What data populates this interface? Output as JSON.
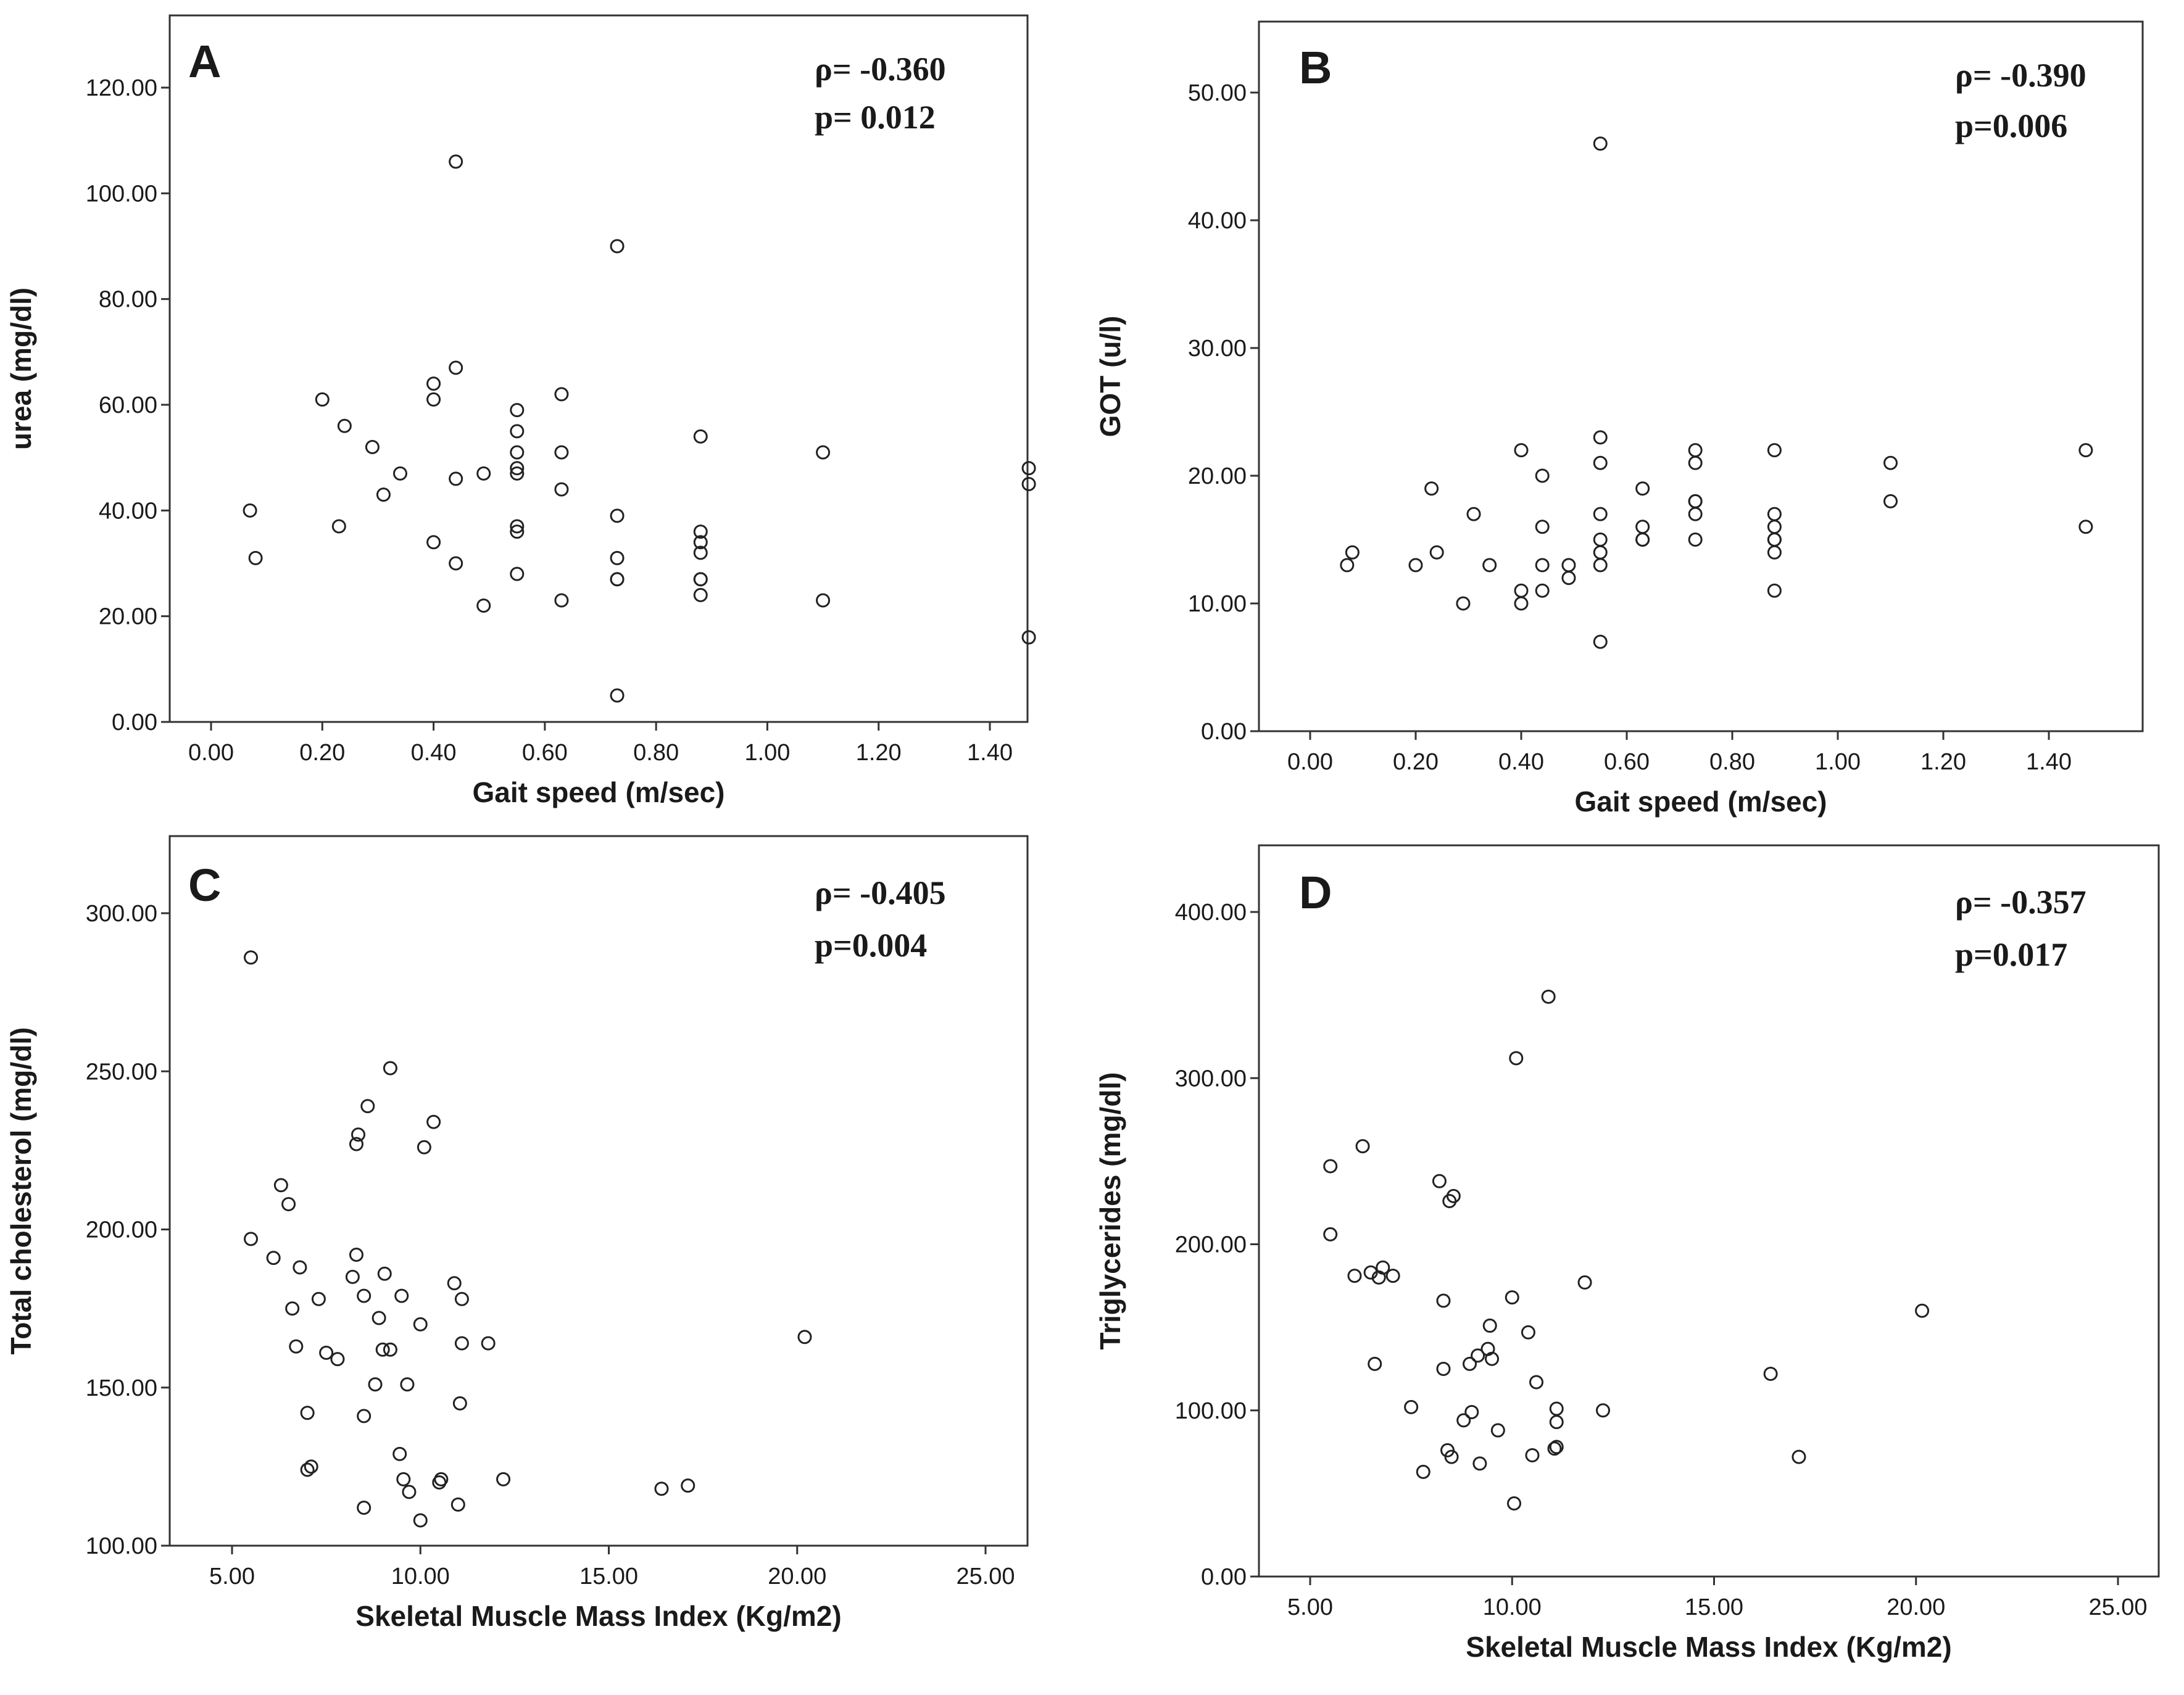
{
  "chart_data": [
    {
      "type": "scatter",
      "panel_label": "A",
      "rho_text": "ρ= -0.360",
      "p_text": "p= 0.012",
      "xlabel": "Gait speed (m/sec)",
      "ylabel": "urea (mg/dl)",
      "xlim": [
        -0.1,
        1.57
      ],
      "ylim": [
        0,
        120
      ],
      "x_ticks": [
        0,
        0.2,
        0.4,
        0.6,
        0.8,
        1.0,
        1.2,
        1.4
      ],
      "y_ticks": [
        0,
        20,
        40,
        60,
        80,
        100,
        120
      ],
      "x_tick_labels": [
        "0.00",
        "0.20",
        "0.40",
        "0.60",
        "0.80",
        "1.00",
        "1.20",
        "1.40"
      ],
      "y_tick_labels": [
        "0.00",
        "20.00",
        "40.00",
        "60.00",
        "80.00",
        "100.00",
        "120.00"
      ],
      "points": [
        [
          0.07,
          40
        ],
        [
          0.08,
          31
        ],
        [
          0.2,
          61
        ],
        [
          0.23,
          37
        ],
        [
          0.24,
          56
        ],
        [
          0.29,
          52
        ],
        [
          0.31,
          43
        ],
        [
          0.34,
          47
        ],
        [
          0.4,
          64
        ],
        [
          0.4,
          61
        ],
        [
          0.4,
          34
        ],
        [
          0.44,
          106
        ],
        [
          0.44,
          67
        ],
        [
          0.44,
          46
        ],
        [
          0.44,
          30
        ],
        [
          0.49,
          47
        ],
        [
          0.49,
          22
        ],
        [
          0.55,
          59
        ],
        [
          0.55,
          55
        ],
        [
          0.55,
          51
        ],
        [
          0.55,
          48
        ],
        [
          0.55,
          47
        ],
        [
          0.55,
          37
        ],
        [
          0.55,
          36
        ],
        [
          0.55,
          28
        ],
        [
          0.63,
          62
        ],
        [
          0.63,
          51
        ],
        [
          0.63,
          44
        ],
        [
          0.63,
          23
        ],
        [
          0.73,
          90
        ],
        [
          0.73,
          39
        ],
        [
          0.73,
          31
        ],
        [
          0.73,
          27
        ],
        [
          0.73,
          27
        ],
        [
          0.73,
          5
        ],
        [
          0.88,
          54
        ],
        [
          0.88,
          36
        ],
        [
          0.88,
          34
        ],
        [
          0.88,
          32
        ],
        [
          0.88,
          27
        ],
        [
          0.88,
          27
        ],
        [
          0.88,
          24
        ],
        [
          1.1,
          51
        ],
        [
          1.1,
          23
        ],
        [
          1.47,
          48
        ],
        [
          1.47,
          45
        ],
        [
          1.47,
          16
        ]
      ]
    },
    {
      "type": "scatter",
      "panel_label": "B",
      "rho_text": "ρ= -0.390",
      "p_text": "p=0.006",
      "xlabel": "Gait speed (m/sec)",
      "ylabel": "GOT (u/l)",
      "xlim": [
        -0.1,
        1.57
      ],
      "ylim": [
        0,
        50
      ],
      "x_ticks": [
        0,
        0.2,
        0.4,
        0.6,
        0.8,
        1.0,
        1.2,
        1.4
      ],
      "y_ticks": [
        0,
        10,
        20,
        30,
        40,
        50
      ],
      "x_tick_labels": [
        "0.00",
        "0.20",
        "0.40",
        "0.60",
        "0.80",
        "1.00",
        "1.20",
        "1.40"
      ],
      "y_tick_labels": [
        "0.00",
        "10.00",
        "20.00",
        "30.00",
        "40.00",
        "50.00"
      ],
      "points": [
        [
          0.07,
          13
        ],
        [
          0.08,
          14
        ],
        [
          0.2,
          13
        ],
        [
          0.23,
          19
        ],
        [
          0.24,
          14
        ],
        [
          0.29,
          10
        ],
        [
          0.31,
          17
        ],
        [
          0.34,
          13
        ],
        [
          0.4,
          22
        ],
        [
          0.4,
          11
        ],
        [
          0.4,
          10
        ],
        [
          0.44,
          20
        ],
        [
          0.44,
          16
        ],
        [
          0.44,
          13
        ],
        [
          0.44,
          11
        ],
        [
          0.49,
          13
        ],
        [
          0.49,
          12
        ],
        [
          0.55,
          46
        ],
        [
          0.55,
          23
        ],
        [
          0.55,
          21
        ],
        [
          0.55,
          17
        ],
        [
          0.55,
          15
        ],
        [
          0.55,
          14
        ],
        [
          0.55,
          13
        ],
        [
          0.55,
          7
        ],
        [
          0.63,
          19
        ],
        [
          0.63,
          16
        ],
        [
          0.63,
          15
        ],
        [
          0.63,
          15
        ],
        [
          0.73,
          22
        ],
        [
          0.73,
          21
        ],
        [
          0.73,
          18
        ],
        [
          0.73,
          18
        ],
        [
          0.73,
          17
        ],
        [
          0.73,
          15
        ],
        [
          0.88,
          22
        ],
        [
          0.88,
          17
        ],
        [
          0.88,
          16
        ],
        [
          0.88,
          15
        ],
        [
          0.88,
          15
        ],
        [
          0.88,
          14
        ],
        [
          0.88,
          11
        ],
        [
          1.1,
          21
        ],
        [
          1.1,
          18
        ],
        [
          1.47,
          22
        ],
        [
          1.47,
          16
        ]
      ]
    },
    {
      "type": "scatter",
      "panel_label": "C",
      "rho_text": "ρ= -0.405",
      "p_text": "p=0.004",
      "xlabel": "Skeletal Muscle Mass Index (Kg/m2)",
      "ylabel": "Total cholesterol (mg/dl)",
      "xlim": [
        4,
        26
      ],
      "ylim": [
        100,
        300
      ],
      "x_ticks": [
        5,
        10,
        15,
        20,
        25
      ],
      "y_ticks": [
        100,
        150,
        200,
        250,
        300
      ],
      "x_tick_labels": [
        "5.00",
        "10.00",
        "15.00",
        "20.00",
        "25.00"
      ],
      "y_tick_labels": [
        "100.00",
        "150.00",
        "200.00",
        "250.00",
        "300.00"
      ],
      "points": [
        [
          5.5,
          286
        ],
        [
          5.5,
          197
        ],
        [
          6.1,
          191
        ],
        [
          6.3,
          214
        ],
        [
          6.5,
          208
        ],
        [
          6.6,
          175
        ],
        [
          6.7,
          163
        ],
        [
          6.8,
          188
        ],
        [
          7.0,
          142
        ],
        [
          7.0,
          124
        ],
        [
          7.1,
          125
        ],
        [
          7.3,
          178
        ],
        [
          7.5,
          161
        ],
        [
          7.8,
          159
        ],
        [
          8.2,
          185
        ],
        [
          8.3,
          227
        ],
        [
          8.35,
          230
        ],
        [
          8.3,
          192
        ],
        [
          8.5,
          179
        ],
        [
          8.5,
          141
        ],
        [
          8.5,
          112
        ],
        [
          8.6,
          239
        ],
        [
          8.8,
          151
        ],
        [
          8.9,
          172
        ],
        [
          9.0,
          162
        ],
        [
          9.05,
          186
        ],
        [
          9.2,
          162
        ],
        [
          9.2,
          251
        ],
        [
          9.45,
          129
        ],
        [
          9.5,
          179
        ],
        [
          9.55,
          121
        ],
        [
          9.65,
          151
        ],
        [
          9.7,
          117
        ],
        [
          10.0,
          170
        ],
        [
          10.0,
          108
        ],
        [
          10.1,
          226
        ],
        [
          10.35,
          234
        ],
        [
          10.5,
          120
        ],
        [
          10.55,
          121
        ],
        [
          10.9,
          183
        ],
        [
          11.0,
          113
        ],
        [
          11.1,
          178
        ],
        [
          11.1,
          164
        ],
        [
          11.05,
          145
        ],
        [
          11.8,
          164
        ],
        [
          12.2,
          121
        ],
        [
          16.4,
          118
        ],
        [
          17.1,
          119
        ],
        [
          20.2,
          166
        ]
      ]
    },
    {
      "type": "scatter",
      "panel_label": "D",
      "rho_text": "ρ= -0.357",
      "p_text": "p=0.017",
      "xlabel": "Skeletal Muscle Mass Index (Kg/m2)",
      "ylabel": "Triglycerides (mg/dl)",
      "xlim": [
        4,
        26
      ],
      "ylim": [
        0,
        400
      ],
      "x_ticks": [
        5,
        10,
        15,
        20,
        25
      ],
      "y_ticks": [
        0,
        100,
        200,
        300,
        400
      ],
      "x_tick_labels": [
        "5.00",
        "10.00",
        "15.00",
        "20.00",
        "25.00"
      ],
      "y_tick_labels": [
        "0.00",
        "100.00",
        "200.00",
        "300.00",
        "400.00"
      ],
      "points": [
        [
          5.5,
          247
        ],
        [
          5.5,
          206
        ],
        [
          6.1,
          181
        ],
        [
          6.3,
          259
        ],
        [
          6.5,
          183
        ],
        [
          6.6,
          128
        ],
        [
          6.7,
          180
        ],
        [
          6.8,
          186
        ],
        [
          7.05,
          181
        ],
        [
          7.5,
          102
        ],
        [
          7.8,
          63
        ],
        [
          8.2,
          238
        ],
        [
          8.3,
          166
        ],
        [
          8.3,
          125
        ],
        [
          8.4,
          76
        ],
        [
          8.5,
          72
        ],
        [
          8.45,
          226
        ],
        [
          8.55,
          229
        ],
        [
          8.8,
          94
        ],
        [
          8.95,
          128
        ],
        [
          9.0,
          99
        ],
        [
          9.15,
          133
        ],
        [
          9.2,
          68
        ],
        [
          9.4,
          137
        ],
        [
          9.45,
          151
        ],
        [
          9.5,
          131
        ],
        [
          9.65,
          88
        ],
        [
          10.0,
          168
        ],
        [
          10.05,
          44
        ],
        [
          10.1,
          312
        ],
        [
          10.4,
          147
        ],
        [
          10.5,
          73
        ],
        [
          10.6,
          117
        ],
        [
          10.9,
          349
        ],
        [
          11.1,
          101
        ],
        [
          11.1,
          93
        ],
        [
          11.1,
          78
        ],
        [
          11.05,
          77
        ],
        [
          11.8,
          177
        ],
        [
          12.25,
          100
        ],
        [
          16.4,
          122
        ],
        [
          17.1,
          72
        ],
        [
          20.15,
          160
        ]
      ]
    }
  ]
}
